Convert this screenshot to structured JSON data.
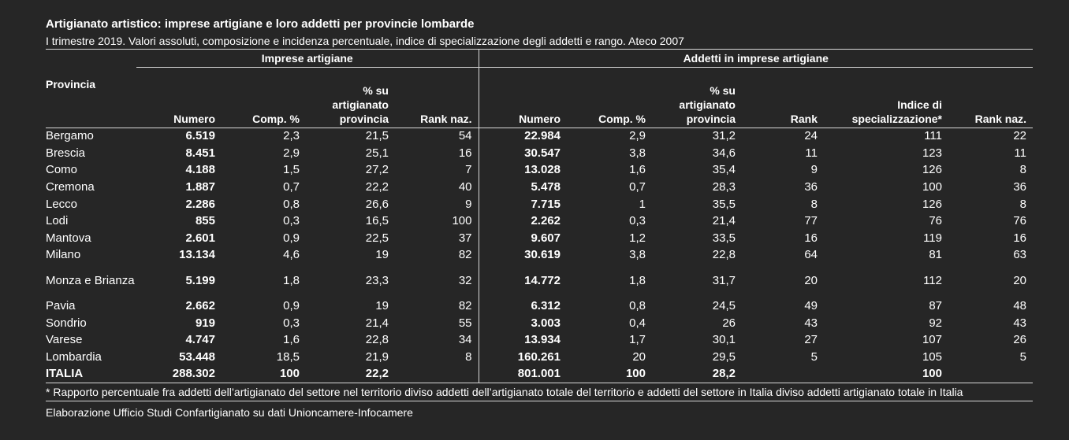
{
  "title": "Artigianato artistico: imprese artigiane e loro addetti per provincie lombarde",
  "subtitle": "I trimestre 2019. Valori assoluti, composizione e incidenza percentuale, indice di specializzazione degli addetti e rango. Ateco 2007",
  "groups": {
    "imprese": "Imprese artigiane",
    "addetti": "Addetti in imprese artigiane"
  },
  "headers": {
    "provincia": "Provincia",
    "imp_numero": "Numero",
    "imp_comp": "Comp. %",
    "imp_perc": "% su artigianato provincia",
    "imp_rank": "Rank naz.",
    "add_numero": "Numero",
    "add_comp": "Comp. %",
    "add_perc": "% su artigianato provincia",
    "add_rank": "Rank",
    "add_indice": "Indice di specializzazione*",
    "add_ranknaz": "Rank naz."
  },
  "rows": [
    [
      "Bergamo",
      "6.519",
      "2,3",
      "21,5",
      "54",
      "22.984",
      "2,9",
      "31,2",
      "24",
      "111",
      "22"
    ],
    [
      "Brescia",
      "8.451",
      "2,9",
      "25,1",
      "16",
      "30.547",
      "3,8",
      "34,6",
      "11",
      "123",
      "11"
    ],
    [
      "Como",
      "4.188",
      "1,5",
      "27,2",
      "7",
      "13.028",
      "1,6",
      "35,4",
      "9",
      "126",
      "8"
    ],
    [
      "Cremona",
      "1.887",
      "0,7",
      "22,2",
      "40",
      "5.478",
      "0,7",
      "28,3",
      "36",
      "100",
      "36"
    ],
    [
      "Lecco",
      "2.286",
      "0,8",
      "26,6",
      "9",
      "7.715",
      "1",
      "35,5",
      "8",
      "126",
      "8"
    ],
    [
      "Lodi",
      "855",
      "0,3",
      "16,5",
      "100",
      "2.262",
      "0,3",
      "21,4",
      "77",
      "76",
      "76"
    ],
    [
      "Mantova",
      "2.601",
      "0,9",
      "22,5",
      "37",
      "9.607",
      "1,2",
      "33,5",
      "16",
      "119",
      "16"
    ],
    [
      "Milano",
      "13.134",
      "4,6",
      "19",
      "82",
      "30.619",
      "3,8",
      "22,8",
      "64",
      "81",
      "63"
    ],
    [
      "Monza e Brianza",
      "5.199",
      "1,8",
      "23,3",
      "32",
      "14.772",
      "1,8",
      "31,7",
      "20",
      "112",
      "20"
    ],
    [
      "Pavia",
      "2.662",
      "0,9",
      "19",
      "82",
      "6.312",
      "0,8",
      "24,5",
      "49",
      "87",
      "48"
    ],
    [
      "Sondrio",
      "919",
      "0,3",
      "21,4",
      "55",
      "3.003",
      "0,4",
      "26",
      "43",
      "92",
      "43"
    ],
    [
      "Varese",
      "4.747",
      "1,6",
      "22,8",
      "34",
      "13.934",
      "1,7",
      "30,1",
      "27",
      "107",
      "26"
    ],
    [
      "Lombardia",
      "53.448",
      "18,5",
      "21,9",
      "8",
      "160.261",
      "20",
      "29,5",
      "5",
      "105",
      "5"
    ],
    [
      "ITALIA",
      "288.302",
      "100",
      "22,2",
      "",
      "801.001",
      "100",
      "28,2",
      "",
      "100",
      ""
    ]
  ],
  "note": "* Rapporto percentuale fra addetti dell’artigianato del settore nel territorio diviso addetti dell’artigianato totale del territorio e addetti del settore in Italia diviso addetti artigianato totale in Italia",
  "source": "Elaborazione Ufficio Studi Confartigianato su dati Unioncamere-Infocamere"
}
